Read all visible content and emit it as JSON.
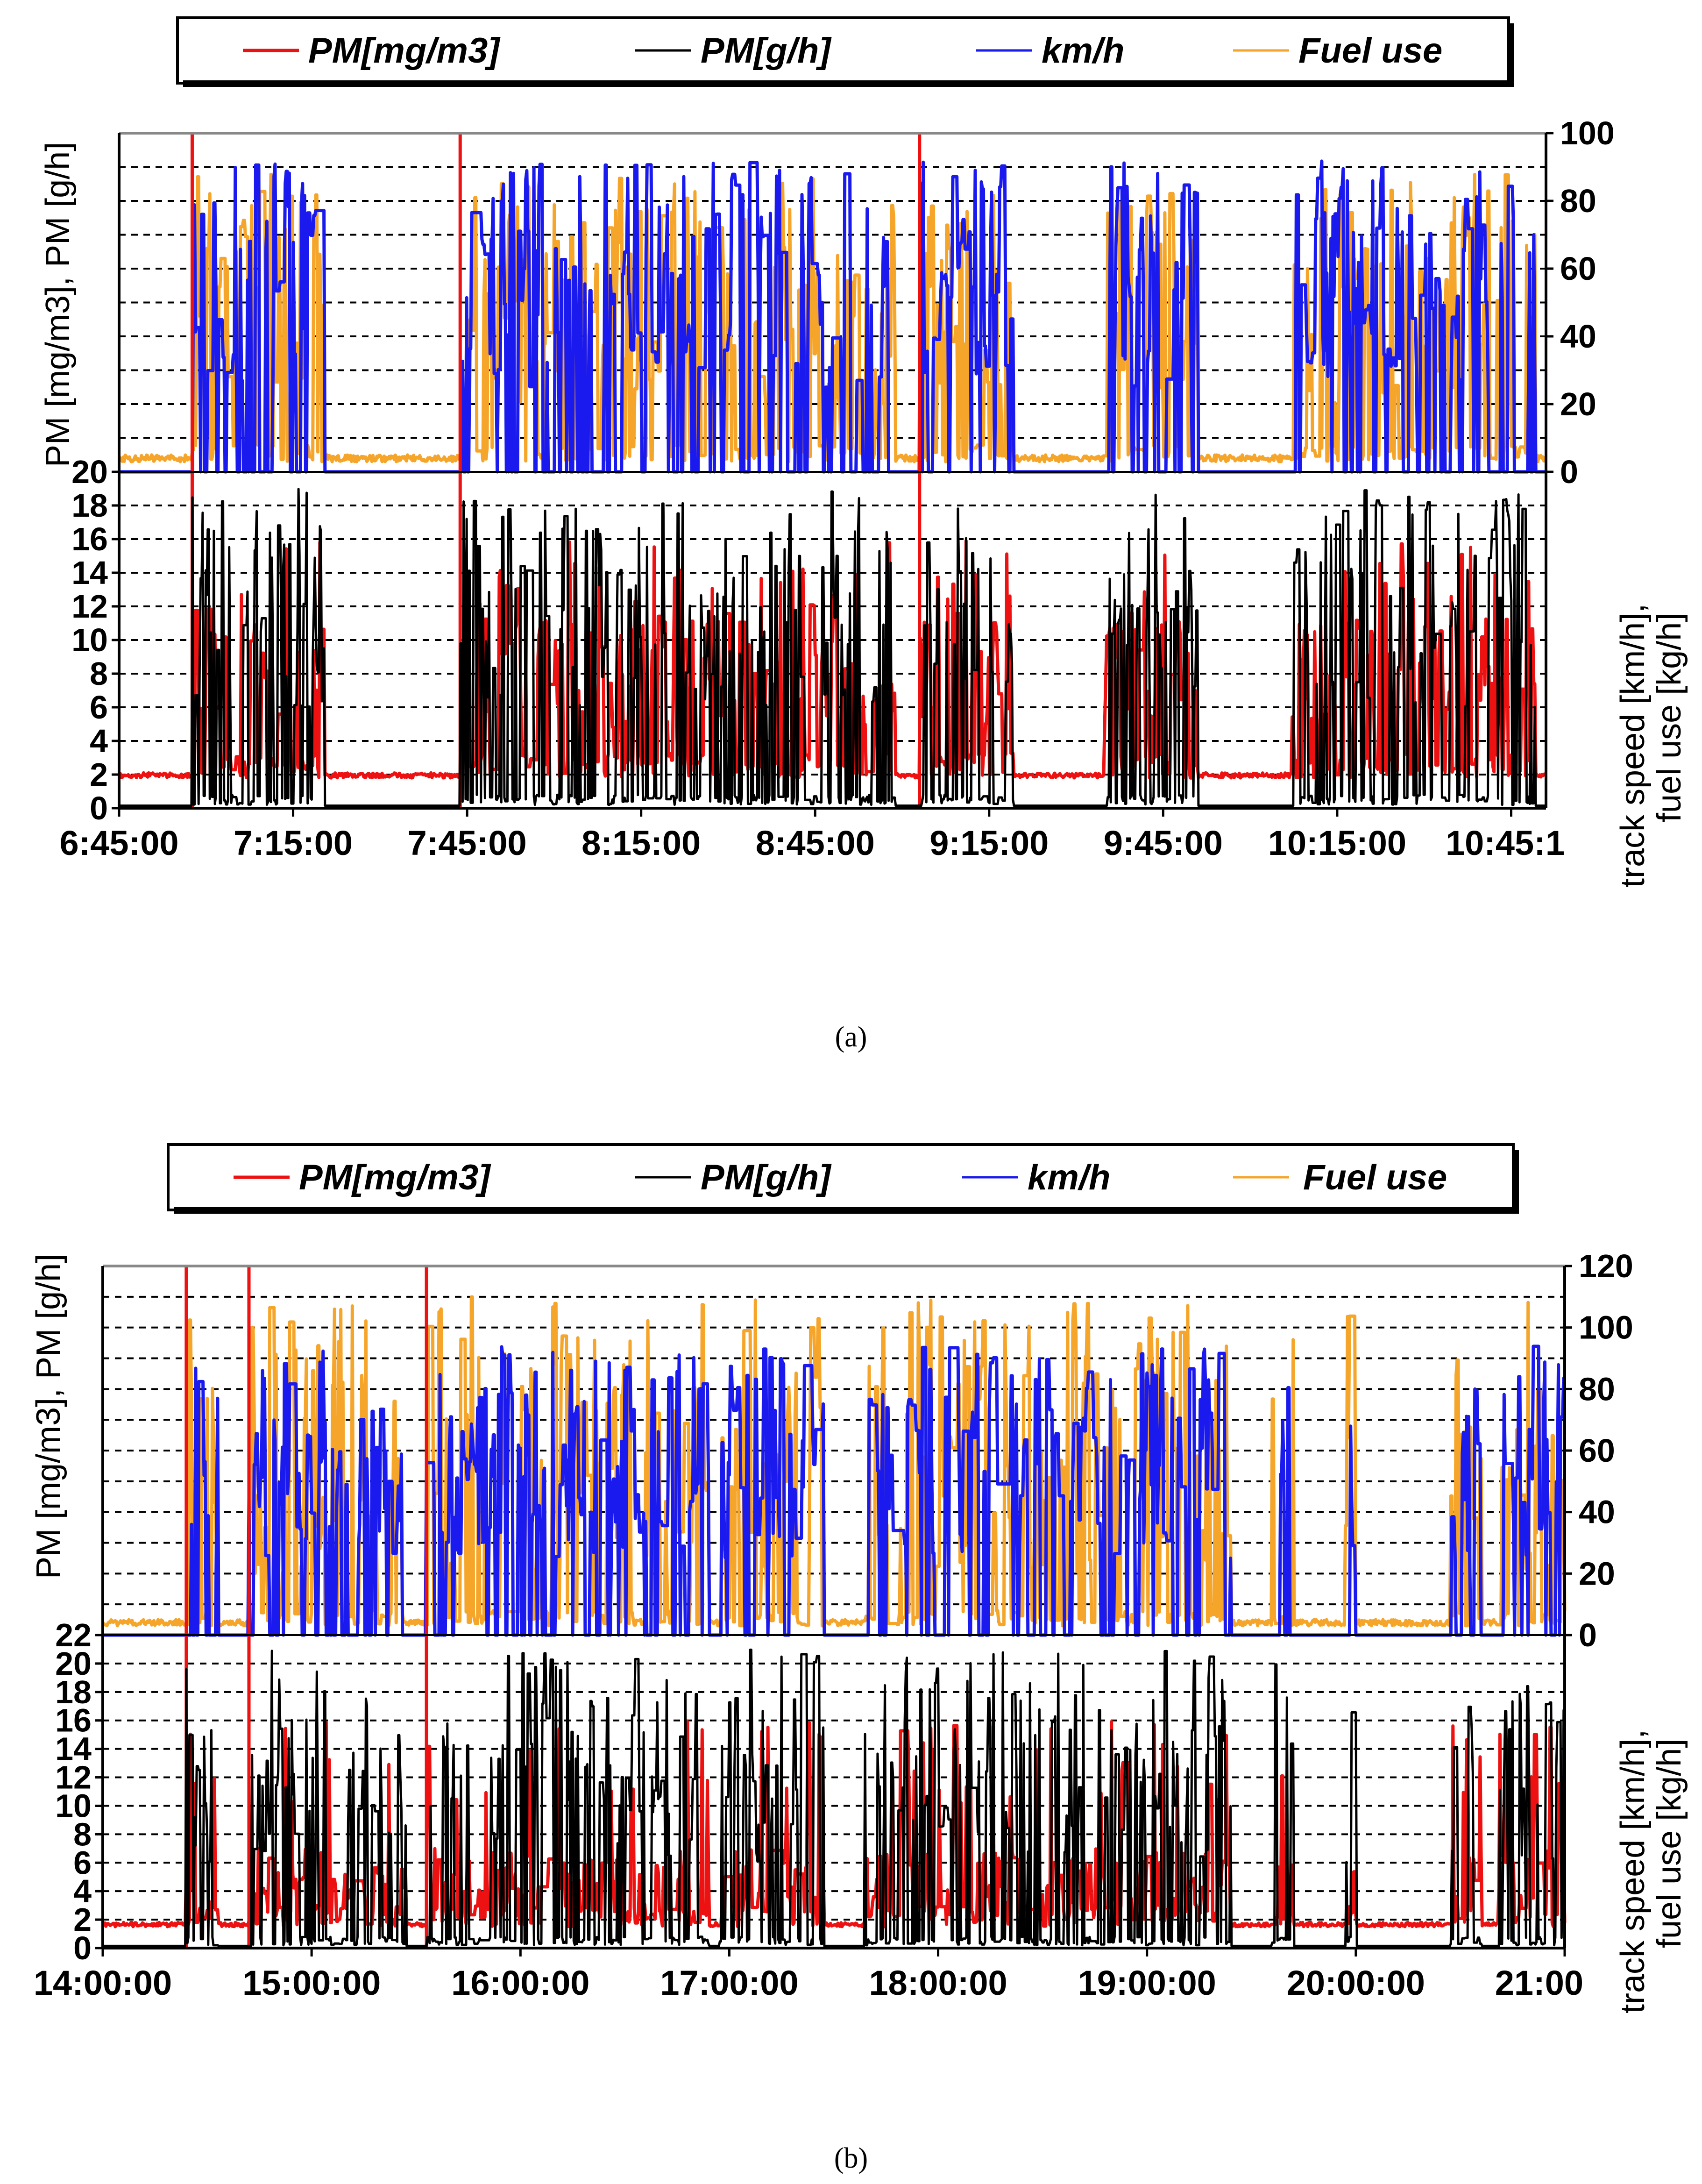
{
  "chart_data": [
    {
      "id": "a",
      "type": "line",
      "caption": "(a)",
      "legend": [
        "PM[mg/m3]",
        "PM[g/h]",
        "km/h",
        "Fuel use"
      ],
      "colors": {
        "pm_conc": "#ee1111",
        "pm_rate": "#000000",
        "speed": "#1a1aee",
        "fuel": "#f5a52a"
      },
      "left_axis_label": "PM [mg/m3], PM [g/h]",
      "right_axis_label_1": "track speed [km/h],",
      "right_axis_label_2": "fuel use [kg/h]",
      "x_tick_labels": [
        "6:45:00",
        "7:15:00",
        "7:45:00",
        "8:15:00",
        "8:45:00",
        "9:15:00",
        "9:45:00",
        "10:15:00",
        "10:45:1"
      ],
      "x_range_hours": [
        6.75,
        10.85
      ],
      "x_tick_start_hours": 6.75,
      "x_tick_step_hours": 0.5,
      "upper_right_axis": {
        "ticks": [
          "0",
          "20",
          "40",
          "60",
          "80",
          "100"
        ],
        "range": [
          0,
          100
        ],
        "gridlines": [
          10,
          20,
          30,
          40,
          50,
          60,
          70,
          80,
          90
        ]
      },
      "lower_left_axis": {
        "ticks": [
          "0",
          "2",
          "4",
          "6",
          "8",
          "10",
          "12",
          "14",
          "16",
          "18",
          "20"
        ],
        "range": [
          0,
          20
        ],
        "gridlines": [
          2,
          4,
          6,
          8,
          10,
          12,
          14,
          16,
          18
        ]
      },
      "trips": [
        [
          6.96,
          7.34
        ],
        [
          7.73,
          8.98
        ],
        [
          9.05,
          9.32
        ],
        [
          9.58,
          9.85
        ],
        [
          10.12,
          10.82
        ]
      ],
      "levels": {
        "speed_max": 92,
        "fuel_max": 88,
        "pm_conc_base": 1.8,
        "pm_conc_mid": 8,
        "pm_rate_max": 19
      }
    },
    {
      "id": "b",
      "type": "line",
      "caption": "(b)",
      "legend": [
        "PM[mg/m3]",
        "PM[g/h]",
        "km/h",
        "Fuel use"
      ],
      "colors": {
        "pm_conc": "#ee1111",
        "pm_rate": "#000000",
        "speed": "#1a1aee",
        "fuel": "#f5a52a"
      },
      "left_axis_label": "PM [mg/m3], PM [g/h]",
      "right_axis_label_1": "track speed [km/h],",
      "right_axis_label_2": "fuel use [kg/h]",
      "x_tick_labels": [
        "14:00:00",
        "15:00:00",
        "16:00:00",
        "17:00:00",
        "18:00:00",
        "19:00:00",
        "20:00:00",
        "21:00"
      ],
      "x_range_hours": [
        14.0,
        21.0
      ],
      "x_tick_start_hours": 14.0,
      "x_tick_step_hours": 1.0,
      "upper_right_axis": {
        "ticks": [
          "0",
          "20",
          "40",
          "60",
          "80",
          "100",
          "120"
        ],
        "range": [
          0,
          120
        ],
        "gridlines": [
          10,
          20,
          30,
          40,
          50,
          60,
          70,
          80,
          90,
          100,
          110
        ]
      },
      "lower_left_axis": {
        "ticks": [
          "0",
          "2",
          "4",
          "6",
          "8",
          "10",
          "12",
          "14",
          "16",
          "18",
          "20",
          "22"
        ],
        "range": [
          0,
          22
        ],
        "gridlines": [
          2,
          4,
          6,
          8,
          10,
          12,
          14,
          16,
          18,
          20
        ]
      },
      "trips": [
        [
          14.4,
          14.55
        ],
        [
          14.7,
          15.45
        ],
        [
          15.55,
          16.9
        ],
        [
          16.95,
          17.45
        ],
        [
          17.65,
          19.4
        ],
        [
          19.6,
          19.7
        ],
        [
          19.95,
          20.0
        ],
        [
          20.45,
          20.6
        ],
        [
          20.68,
          21.0
        ]
      ],
      "levels": {
        "speed_max": 94,
        "fuel_max": 110,
        "pm_conc_base": 1.5,
        "pm_conc_mid": 5,
        "pm_rate_max": 21
      }
    }
  ]
}
